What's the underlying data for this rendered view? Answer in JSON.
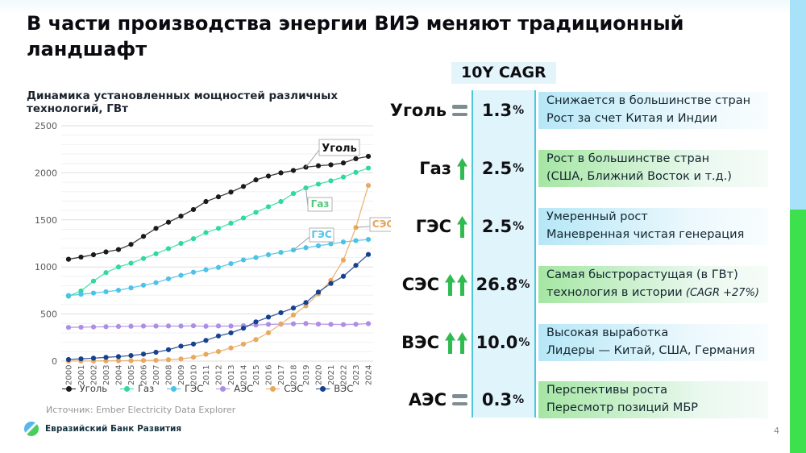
{
  "slide": {
    "title": "В части производства энергии ВИЭ меняют традиционный ландшафт",
    "page_number": "4",
    "source": "Источник: Ember Electricity Data Explorer",
    "logo_text": "Евразийский Банк Развития"
  },
  "cagr_panel": {
    "header": "10Y CAGR",
    "rows": [
      {
        "tech": "Уголь",
        "trend": "flat",
        "value": "1.3",
        "unit": "%",
        "lines": [
          "Снижается в большинстве стран",
          "Рост за счет Китая и Индии"
        ],
        "italic_suffix": "",
        "style": "blue"
      },
      {
        "tech": "Газ",
        "trend": "up",
        "value": "2.5",
        "unit": "%",
        "lines": [
          "Рост в большинстве стран",
          "(США, Ближний Восток и т.д.)"
        ],
        "italic_suffix": "",
        "style": "green"
      },
      {
        "tech": "ГЭС",
        "trend": "up",
        "value": "2.5",
        "unit": "%",
        "lines": [
          "Умеренный рост",
          "Маневренная чистая генерация"
        ],
        "italic_suffix": "",
        "style": "blue"
      },
      {
        "tech": "СЭС",
        "trend": "up2",
        "value": "26.8",
        "unit": "%",
        "lines": [
          "Самая быстрорастущая (в ГВт)",
          "технология в истории"
        ],
        "italic_suffix": "(CAGR +27%)",
        "style": "green"
      },
      {
        "tech": "ВЭС",
        "trend": "up2",
        "value": "10.0",
        "unit": "%",
        "lines": [
          "Высокая выработка",
          "Лидеры — Китай, США, Германия"
        ],
        "italic_suffix": "",
        "style": "blue"
      },
      {
        "tech": "АЭС",
        "trend": "flat",
        "value": "0.3",
        "unit": "%",
        "lines": [
          "Перспективы роста",
          "Пересмотр позиций МБР"
        ],
        "italic_suffix": "",
        "style": "green"
      }
    ]
  },
  "chart_data": {
    "type": "line",
    "title": "Динамика установленных мощностей различных технологий, ГВт",
    "x": [
      2000,
      2001,
      2002,
      2003,
      2004,
      2005,
      2006,
      2007,
      2008,
      2009,
      2010,
      2011,
      2012,
      2013,
      2014,
      2015,
      2016,
      2017,
      2018,
      2019,
      2020,
      2021,
      2022,
      2023,
      2024
    ],
    "ylabel": "ГВт",
    "ylim": [
      0,
      2500
    ],
    "yticks": [
      0,
      500,
      1000,
      1500,
      2000,
      2500
    ],
    "grid": true,
    "legend_position": "bottom",
    "series": [
      {
        "name": "Уголь",
        "color": "#1a1a1a",
        "values": [
          1082,
          1105,
          1130,
          1160,
          1185,
          1240,
          1325,
          1410,
          1475,
          1540,
          1610,
          1695,
          1745,
          1795,
          1855,
          1925,
          1965,
          2000,
          2025,
          2060,
          2075,
          2085,
          2105,
          2150,
          2175
        ]
      },
      {
        "name": "Газ",
        "color": "#2fd9a0",
        "values": [
          690,
          745,
          850,
          940,
          1000,
          1040,
          1090,
          1140,
          1195,
          1250,
          1300,
          1365,
          1410,
          1465,
          1520,
          1580,
          1640,
          1695,
          1780,
          1840,
          1880,
          1915,
          1955,
          2005,
          2050
        ]
      },
      {
        "name": "ГЭС",
        "color": "#4cc2e6",
        "values": [
          697,
          710,
          723,
          737,
          753,
          778,
          806,
          833,
          874,
          911,
          944,
          970,
          995,
          1035,
          1075,
          1100,
          1130,
          1155,
          1180,
          1205,
          1225,
          1245,
          1265,
          1280,
          1292
        ]
      },
      {
        "name": "АЭС",
        "color": "#ae8de4",
        "values": [
          358,
          360,
          363,
          365,
          368,
          370,
          372,
          372,
          373,
          372,
          375,
          370,
          373,
          372,
          376,
          383,
          390,
          392,
          396,
          399,
          393,
          390,
          388,
          391,
          398
        ]
      },
      {
        "name": "СЭС",
        "color": "#e8a95f",
        "values": [
          1,
          1,
          2,
          3,
          4,
          5,
          7,
          9,
          15,
          23,
          41,
          72,
          102,
          140,
          180,
          229,
          301,
          395,
          490,
          587,
          714,
          857,
          1073,
          1419,
          1866
        ]
      },
      {
        "name": "ВЭС",
        "color": "#16418f",
        "values": [
          17,
          24,
          31,
          40,
          48,
          59,
          74,
          94,
          121,
          159,
          181,
          220,
          267,
          300,
          349,
          417,
          467,
          514,
          564,
          622,
          733,
          825,
          901,
          1017,
          1133
        ]
      }
    ],
    "annotations": [
      {
        "label": "Уголь",
        "series": "Уголь",
        "year": 2019,
        "color": "#111111"
      },
      {
        "label": "Газ",
        "series": "Газ",
        "year": 2019,
        "color": "#53c878"
      },
      {
        "label": "ГЭС",
        "series": "ГЭС",
        "year": 2018,
        "color": "#52c3e8"
      },
      {
        "label": "СЭС",
        "series": "СЭС",
        "year": 2023,
        "color": "#e3a458"
      }
    ]
  },
  "colors": {
    "edge_blue": "#a7e2f8",
    "edge_green": "#3fe04e",
    "accent_cyan": "#4cc8dc",
    "value_column_bg": "#dff4fb",
    "arrow_green": "#2fbb4f",
    "flat_gray": "#7f8c94"
  }
}
